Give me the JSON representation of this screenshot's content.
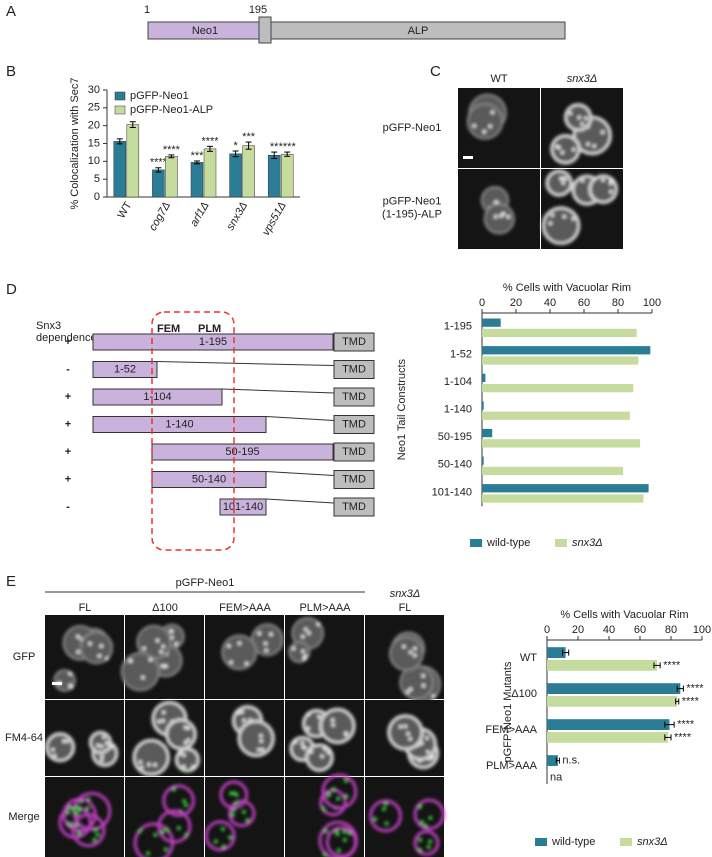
{
  "panel_labels": [
    "A",
    "B",
    "C",
    "D",
    "E"
  ],
  "domain_diagram": {
    "start": "1",
    "junction": "195",
    "segments": [
      "Neo1",
      "ALP"
    ]
  },
  "microscopy_c": {
    "columns": [
      "WT",
      "snx3Δ"
    ],
    "rows": [
      [
        "pGFP-Neo1"
      ],
      [
        "pGFP-Neo1",
        "(1-195)-ALP"
      ]
    ]
  },
  "constructs": {
    "dependence_label": [
      "Snx3",
      "dependence"
    ],
    "motifs": [
      "FEM",
      "PLM"
    ],
    "tmd_label": "TMD",
    "rows": [
      {
        "sign": "+",
        "label": "1-195"
      },
      {
        "sign": "-",
        "label": "1-52"
      },
      {
        "sign": "+",
        "label": "1-104"
      },
      {
        "sign": "+",
        "label": "1-140"
      },
      {
        "sign": "+",
        "label": "50-195"
      },
      {
        "sign": "+",
        "label": "50-140"
      },
      {
        "sign": "-",
        "label": "101-140"
      }
    ]
  },
  "microscopy_e": {
    "group_label": "pGFP-Neo1",
    "columns": [
      [
        "FL"
      ],
      [
        "Δ100"
      ],
      [
        "FEM>AAA"
      ],
      [
        "PLM>AAA"
      ],
      [
        "snx3Δ",
        "FL"
      ]
    ],
    "rows": [
      "GFP",
      "FM4-64",
      "Merge"
    ]
  },
  "chart_data": [
    {
      "type": "bar",
      "orientation": "vertical",
      "ylabel": "% Colocalization  with Sec7",
      "categories": [
        "WT",
        "cog7Δ",
        "arf1Δ",
        "snx3Δ",
        "vps51Δ"
      ],
      "series": [
        {
          "name": "pGFP-Neo1",
          "color": "#2a7d94",
          "values": [
            15.6,
            7.6,
            9.7,
            12.1,
            11.7
          ],
          "errors": [
            0.7,
            0.6,
            0.4,
            0.8,
            0.9
          ],
          "annotations": [
            null,
            "****",
            "***",
            "*",
            "**"
          ]
        },
        {
          "name": "pGFP-Neo1-ALP",
          "color": "#c5dc9e",
          "values": [
            20.3,
            11.4,
            13.5,
            14.4,
            12.0
          ],
          "errors": [
            0.8,
            0.4,
            0.7,
            1.0,
            0.6
          ],
          "annotations": [
            null,
            "****",
            "****",
            "***",
            "****"
          ]
        }
      ],
      "ylim": [
        0,
        30
      ],
      "yticks": [
        0,
        5,
        10,
        15,
        20,
        25,
        30
      ],
      "legend": "upper left"
    },
    {
      "type": "bar",
      "orientation": "horizontal",
      "xlabel": "% Cells with Vacuolar Rim",
      "ylabel": "Neo1 Tail Constructs",
      "categories": [
        "1-195",
        "1-52",
        "1-104",
        "1-140",
        "50-195",
        "50-140",
        "101-140"
      ],
      "series": [
        {
          "name": "wild-type",
          "color": "#2a7d94",
          "values": [
            11,
            99,
            2,
            1,
            6,
            1,
            98
          ]
        },
        {
          "name": "snx3Δ",
          "color": "#c5dc9e",
          "values": [
            91,
            92,
            89,
            87,
            93,
            83,
            95
          ]
        }
      ],
      "xlim": [
        0,
        100
      ],
      "xticks": [
        0,
        20,
        40,
        60,
        80,
        100
      ],
      "legend": "bottom"
    },
    {
      "type": "bar",
      "orientation": "horizontal",
      "xlabel": "% Cells with Vacuolar Rim",
      "ylabel": "pGFP-Neo1 Mutants",
      "categories": [
        "WT",
        "Δ100",
        "FEM>AAA",
        "PLM>AAA"
      ],
      "series": [
        {
          "name": "wild-type",
          "color": "#2a7d94",
          "values": [
            12,
            86,
            79,
            7
          ],
          "errors": [
            2,
            2,
            3,
            1
          ],
          "annotations": [
            null,
            "****",
            "****",
            "n.s."
          ]
        },
        {
          "name": "snx3Δ",
          "color": "#c5dc9e",
          "values": [
            71,
            84,
            78,
            null
          ],
          "errors": [
            2,
            1,
            2,
            null
          ],
          "annotations": [
            "****",
            "****",
            "****",
            "na"
          ]
        }
      ],
      "xlim": [
        0,
        100
      ],
      "xticks": [
        0,
        20,
        40,
        60,
        80,
        100
      ],
      "legend": "bottom"
    }
  ]
}
